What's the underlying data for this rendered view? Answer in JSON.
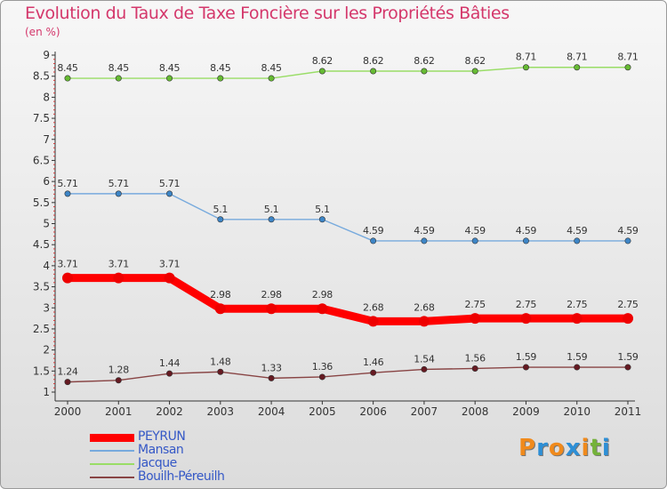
{
  "header": {
    "title": "Evolution du Taux de Taxe Foncière sur les Propriétés Bâties",
    "subtitle": "(en %)"
  },
  "logo": {
    "letters": [
      "P",
      "r",
      "o",
      "x",
      "i",
      "t",
      "i"
    ],
    "colors": [
      "#f08a1c",
      "#2d8fd6",
      "#f08a1c",
      "#2d8fd6",
      "#f08a1c",
      "#74b23a",
      "#2d8fd6"
    ]
  },
  "chart_data": {
    "type": "line",
    "title": "Evolution du Taux de Taxe Foncière sur les Propriétés Bâties",
    "ylabel": "(en %)",
    "xlabel": "",
    "x": [
      "2000",
      "2001",
      "2002",
      "2003",
      "2004",
      "2005",
      "2006",
      "2007",
      "2008",
      "2009",
      "2010",
      "2011"
    ],
    "ylim": [
      1,
      9
    ],
    "yticks": [
      "1",
      "1.5",
      "2",
      "2.5",
      "3",
      "3.5",
      "4",
      "4.5",
      "5",
      "5.5",
      "6",
      "6.5",
      "7",
      "7.5",
      "8",
      "8.5",
      "9"
    ],
    "grid": false,
    "legend_position": "bottom-left",
    "series": [
      {
        "name": "Jacque",
        "color": "#99dd66",
        "marker": "#66bb33",
        "emphasis": false,
        "values": [
          8.45,
          8.45,
          8.45,
          8.45,
          8.45,
          8.62,
          8.62,
          8.62,
          8.62,
          8.71,
          8.71,
          8.71
        ],
        "labels": [
          "8.45",
          "8.45",
          "8.45",
          "8.45",
          "8.45",
          "8.62",
          "8.62",
          "8.62",
          "8.62",
          "8.71",
          "8.71",
          "8.71"
        ]
      },
      {
        "name": "Mansan",
        "color": "#77aadd",
        "marker": "#3d85c6",
        "emphasis": false,
        "values": [
          5.71,
          5.71,
          5.71,
          5.1,
          5.1,
          5.1,
          4.59,
          4.59,
          4.59,
          4.59,
          4.59,
          4.59
        ],
        "labels": [
          "5.71",
          "5.71",
          "5.71",
          "5.1",
          "5.1",
          "5.1",
          "4.59",
          "4.59",
          "4.59",
          "4.59",
          "4.59",
          "4.59"
        ]
      },
      {
        "name": "PEYRUN",
        "color": "#ff0000",
        "marker": "#ee0000",
        "emphasis": true,
        "values": [
          3.71,
          3.71,
          3.71,
          2.98,
          2.98,
          2.98,
          2.68,
          2.68,
          2.75,
          2.75,
          2.75,
          2.75
        ],
        "labels": [
          "3.71",
          "3.71",
          "3.71",
          "2.98",
          "2.98",
          "2.98",
          "2.68",
          "2.68",
          "2.75",
          "2.75",
          "2.75",
          "2.75"
        ]
      },
      {
        "name": "Bouilh-Péreuilh",
        "color": "#884444",
        "marker": "#661a22",
        "emphasis": false,
        "values": [
          1.24,
          1.28,
          1.44,
          1.48,
          1.33,
          1.36,
          1.46,
          1.54,
          1.56,
          1.59,
          1.59,
          1.59
        ],
        "labels": [
          "1.24",
          "1.28",
          "1.44",
          "1.48",
          "1.33",
          "1.36",
          "1.46",
          "1.54",
          "1.56",
          "1.59",
          "1.59",
          "1.59"
        ]
      }
    ],
    "legend": [
      {
        "name": "PEYRUN",
        "color": "#ff0000",
        "emphasis": true
      },
      {
        "name": "Mansan",
        "color": "#77aadd",
        "emphasis": false
      },
      {
        "name": "Jacque",
        "color": "#99dd66",
        "emphasis": false
      },
      {
        "name": "Bouilh-Péreuilh",
        "color": "#884444",
        "emphasis": false
      }
    ]
  }
}
